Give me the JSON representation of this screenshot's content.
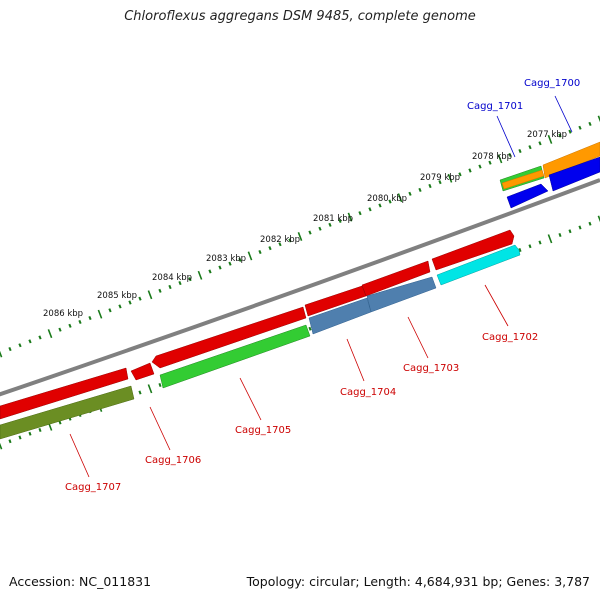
{
  "title": "Chloroflexus aggregans DSM 9485, complete genome",
  "footer": {
    "accession": "Accession: NC_011831",
    "topology": "Topology: circular; Length: 4,684,931 bp; Genes: 3,787"
  },
  "scale_labels": [
    "2077 kbp",
    "2078 kbp",
    "2079 kbp",
    "2080 kbp",
    "2081 kbp",
    "2082 kbp",
    "2083 kbp",
    "2084 kbp",
    "2085 kbp",
    "2086 kbp"
  ],
  "genes": [
    {
      "name": "Cagg_1700",
      "color": "#0000cc"
    },
    {
      "name": "Cagg_1701",
      "color": "#0000cc"
    },
    {
      "name": "Cagg_1702",
      "color": "#cc0000"
    },
    {
      "name": "Cagg_1703",
      "color": "#cc0000"
    },
    {
      "name": "Cagg_1704",
      "color": "#cc0000"
    },
    {
      "name": "Cagg_1705",
      "color": "#cc0000"
    },
    {
      "name": "Cagg_1706",
      "color": "#cc0000"
    },
    {
      "name": "Cagg_1707",
      "color": "#cc0000"
    }
  ],
  "colors": {
    "backbone": "#808080",
    "ticks": "#1a7a1a",
    "red": "#e00000",
    "green": "#33cc33",
    "orange": "#ff9900",
    "blue": "#0000ee",
    "steelblue": "#4f7fae",
    "cyan": "#00e5e5",
    "olive": "#6b8e23"
  }
}
